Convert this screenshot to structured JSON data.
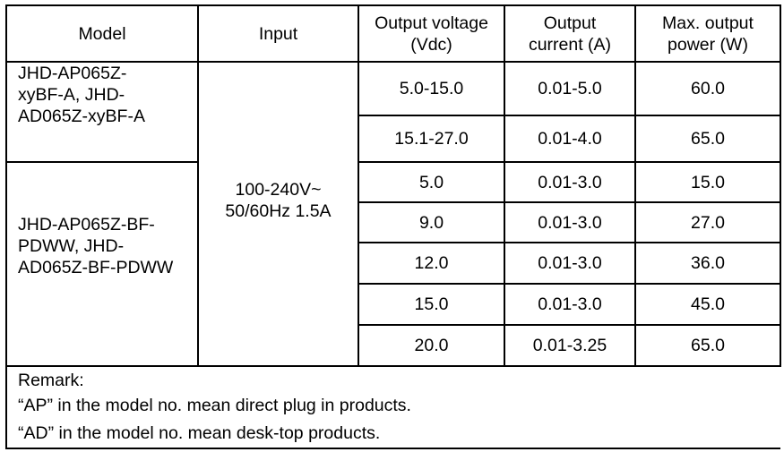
{
  "headers": {
    "model": "Model",
    "input": "Input",
    "voltage": "Output voltage (Vdc)",
    "current": "Output current (A)",
    "power": "Max. output power (W)"
  },
  "input": "100-240V~ 50/60Hz 1.5A",
  "groups": [
    {
      "model": "JHD-AP065Z-xyBF-A, JHD-AD065Z-xyBF-A",
      "rows": [
        {
          "voltage": "5.0-15.0",
          "current": "0.01-5.0",
          "power": "60.0"
        },
        {
          "voltage": "15.1-27.0",
          "current": "0.01-4.0",
          "power": "65.0"
        }
      ]
    },
    {
      "model": "JHD-AP065Z-BF-PDWW, JHD-AD065Z-BF-PDWW",
      "rows": [
        {
          "voltage": "5.0",
          "current": "0.01-3.0",
          "power": "15.0"
        },
        {
          "voltage": "9.0",
          "current": "0.01-3.0",
          "power": "27.0"
        },
        {
          "voltage": "12.0",
          "current": "0.01-3.0",
          "power": "36.0"
        },
        {
          "voltage": "15.0",
          "current": "0.01-3.0",
          "power": "45.0"
        },
        {
          "voltage": "20.0",
          "current": "0.01-3.25",
          "power": "65.0"
        }
      ]
    }
  ],
  "remark": {
    "title": "Remark:",
    "lines": [
      "“AP” in the model no. mean direct plug in products.",
      "“AD” in the model no. mean desk-top products."
    ]
  }
}
